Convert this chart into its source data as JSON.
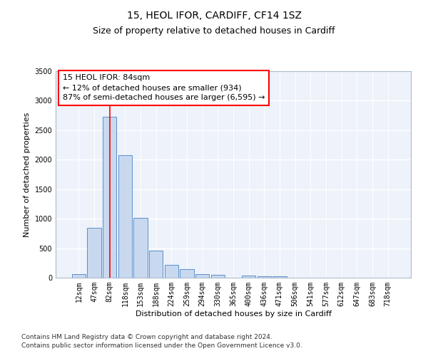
{
  "title": "15, HEOL IFOR, CARDIFF, CF14 1SZ",
  "subtitle": "Size of property relative to detached houses in Cardiff",
  "xlabel": "Distribution of detached houses by size in Cardiff",
  "ylabel": "Number of detached properties",
  "categories": [
    "12sqm",
    "47sqm",
    "82sqm",
    "118sqm",
    "153sqm",
    "188sqm",
    "224sqm",
    "259sqm",
    "294sqm",
    "330sqm",
    "365sqm",
    "400sqm",
    "436sqm",
    "471sqm",
    "506sqm",
    "541sqm",
    "577sqm",
    "612sqm",
    "647sqm",
    "683sqm",
    "718sqm"
  ],
  "values": [
    55,
    840,
    2730,
    2070,
    1010,
    455,
    220,
    145,
    60,
    45,
    0,
    35,
    20,
    30,
    0,
    0,
    0,
    0,
    0,
    0,
    0
  ],
  "bar_color": "#c8d9ef",
  "bar_edge_color": "#5b8fc9",
  "background_color": "#eef2fa",
  "grid_color": "#ffffff",
  "annotation_text_line1": "15 HEOL IFOR: 84sqm",
  "annotation_text_line2": "← 12% of detached houses are smaller (934)",
  "annotation_text_line3": "87% of semi-detached houses are larger (6,595) →",
  "redline_bar_index": 2,
  "ylim": [
    0,
    3500
  ],
  "yticks": [
    0,
    500,
    1000,
    1500,
    2000,
    2500,
    3000,
    3500
  ],
  "footnote1": "Contains HM Land Registry data © Crown copyright and database right 2024.",
  "footnote2": "Contains public sector information licensed under the Open Government Licence v3.0.",
  "title_fontsize": 10,
  "subtitle_fontsize": 9,
  "xlabel_fontsize": 8,
  "ylabel_fontsize": 8,
  "tick_fontsize": 7,
  "annotation_fontsize": 8,
  "footnote_fontsize": 6.5
}
